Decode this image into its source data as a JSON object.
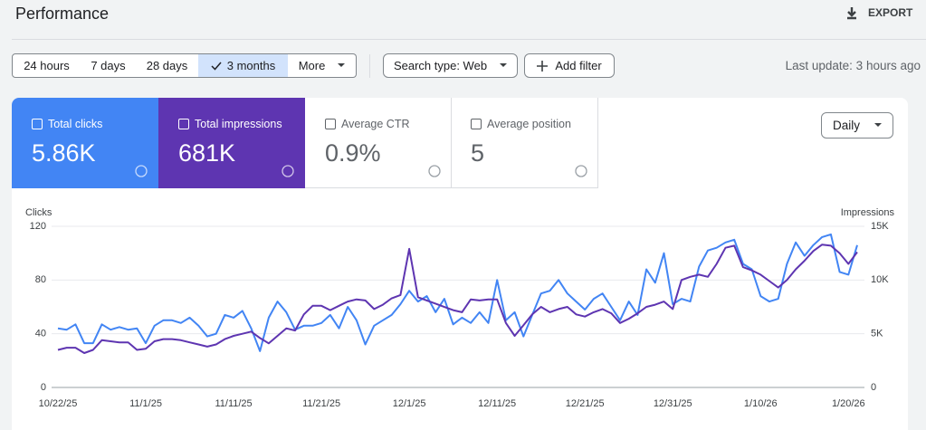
{
  "header": {
    "title": "Performance",
    "export": "EXPORT"
  },
  "filters": {
    "ranges": [
      "24 hours",
      "7 days",
      "28 days",
      "3 months",
      "More"
    ],
    "search_type": "Search type: Web",
    "add_filter": "Add filter",
    "last_update": "Last update: 3 hours ago"
  },
  "metrics": [
    {
      "label": "Total clicks",
      "value": "5.86K"
    },
    {
      "label": "Total impressions",
      "value": "681K"
    },
    {
      "label": "Average CTR",
      "value": "0.9%"
    },
    {
      "label": "Average position",
      "value": "5"
    }
  ],
  "granularity": "Daily",
  "chart_data": {
    "type": "line",
    "y_label": "Clicks",
    "y2_label": "Impressions",
    "x": [
      "10/22/25",
      "10/23/25",
      "10/24/25",
      "10/25/25",
      "10/26/25",
      "10/27/25",
      "10/28/25",
      "10/29/25",
      "10/30/25",
      "10/31/25",
      "11/1/25",
      "11/2/25",
      "11/3/25",
      "11/4/25",
      "11/5/25",
      "11/6/25",
      "11/7/25",
      "11/8/25",
      "11/9/25",
      "11/10/25",
      "11/11/25",
      "11/12/25",
      "11/13/25",
      "11/14/25",
      "11/15/25",
      "11/16/25",
      "11/17/25",
      "11/18/25",
      "11/19/25",
      "11/20/25",
      "11/21/25",
      "11/22/25",
      "11/23/25",
      "11/24/25",
      "11/25/25",
      "11/26/25",
      "11/27/25",
      "11/28/25",
      "11/29/25",
      "11/30/25",
      "12/1/25",
      "12/2/25",
      "12/3/25",
      "12/4/25",
      "12/5/25",
      "12/6/25",
      "12/7/25",
      "12/8/25",
      "12/9/25",
      "12/10/25",
      "12/11/25",
      "12/12/25",
      "12/13/25",
      "12/14/25",
      "12/15/25",
      "12/16/25",
      "12/17/25",
      "12/18/25",
      "12/19/25",
      "12/20/25",
      "12/21/25",
      "12/22/25",
      "12/23/25",
      "12/24/25",
      "12/25/25",
      "12/26/25",
      "12/27/25",
      "12/28/25",
      "12/29/25",
      "12/30/25",
      "12/31/25",
      "1/1/26",
      "1/2/26",
      "1/3/26",
      "1/4/26",
      "1/5/26",
      "1/6/26",
      "1/7/26",
      "1/8/26",
      "1/9/26",
      "1/10/26",
      "1/11/26",
      "1/12/26",
      "1/13/26",
      "1/14/26",
      "1/15/26",
      "1/16/26",
      "1/17/26",
      "1/18/26",
      "1/19/26",
      "1/20/26",
      "1/21/26"
    ],
    "xticks": [
      "10/22/25",
      "11/1/25",
      "11/11/25",
      "11/21/25",
      "12/1/25",
      "12/11/25",
      "12/21/25",
      "12/31/25",
      "1/10/26",
      "1/20/26"
    ],
    "series": [
      {
        "name": "Clicks",
        "color": "#4285f4",
        "values": [
          44,
          43,
          47,
          33,
          33,
          47,
          43,
          45,
          43,
          44,
          33,
          46,
          50,
          50,
          48,
          52,
          46,
          38,
          40,
          54,
          52,
          57,
          44,
          27,
          52,
          64,
          56,
          43,
          46,
          46,
          48,
          54,
          44,
          60,
          50,
          32,
          46,
          50,
          54,
          62,
          72,
          64,
          68,
          56,
          66,
          47,
          52,
          48,
          56,
          48,
          80,
          50,
          56,
          38,
          54,
          70,
          72,
          80,
          70,
          64,
          58,
          66,
          70,
          60,
          50,
          64,
          54,
          88,
          78,
          100,
          62,
          66,
          64,
          90,
          102,
          104,
          108,
          110,
          92,
          88,
          68,
          64,
          66,
          92,
          108,
          98,
          106,
          112,
          114,
          86,
          84,
          106
        ]
      },
      {
        "name": "Impressions",
        "color": "#5e35b1",
        "axis": "y2",
        "values": [
          3500,
          3700,
          3700,
          3200,
          3500,
          4400,
          4300,
          4200,
          4200,
          3500,
          3600,
          4300,
          4500,
          4500,
          4400,
          4200,
          4000,
          3800,
          4000,
          4500,
          4800,
          5000,
          5200,
          4600,
          4100,
          4800,
          5500,
          5300,
          6800,
          7600,
          7600,
          7200,
          7600,
          8000,
          8200,
          8100,
          7300,
          7700,
          8300,
          8600,
          12900,
          8400,
          8100,
          7800,
          7500,
          7200,
          7000,
          8200,
          8100,
          8200,
          8200,
          6000,
          4800,
          5800,
          6800,
          7500,
          7000,
          7300,
          7500,
          6800,
          6600,
          7000,
          7300,
          6900,
          6000,
          6400,
          6900,
          7500,
          7700,
          8000,
          7300,
          10000,
          10300,
          10500,
          10300,
          11500,
          13000,
          13200,
          11200,
          10900,
          10500,
          9900,
          9300,
          10000,
          11000,
          11800,
          12700,
          13300,
          13200,
          12500,
          11500,
          12600
        ]
      }
    ],
    "ylim": [
      0,
      120
    ],
    "yticks": [
      0,
      40,
      80,
      120
    ],
    "y2lim": [
      0,
      15000
    ],
    "y2ticks": [
      0,
      {
        "value": 5000,
        "label": "5K"
      },
      {
        "value": 10000,
        "label": "10K"
      },
      {
        "value": 15000,
        "label": "15K"
      }
    ],
    "grid": true
  }
}
